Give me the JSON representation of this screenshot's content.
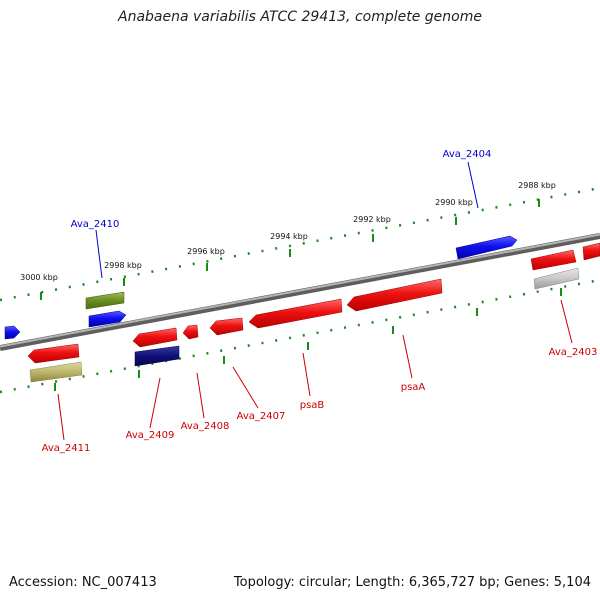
{
  "title": "Anabaena variabilis ATCC 29413, complete genome",
  "footer": {
    "accession": "Accession: NC_007413",
    "summary": "Topology: circular; Length: 6,365,727 bp; Genes: 5,104"
  },
  "colors": {
    "backbone": "#8a8a8a",
    "tick": "#1a8a1a",
    "gene_red": "#ee1111",
    "label_red": "#cc0000",
    "label_blue": "#0000cc"
  },
  "ticks_outer": [
    {
      "label": "3000 kbp"
    },
    {
      "label": "2998 kbp"
    },
    {
      "label": "2996 kbp"
    },
    {
      "label": "2994 kbp"
    },
    {
      "label": "2992 kbp"
    },
    {
      "label": "2990 kbp"
    },
    {
      "label": "2988 kbp"
    }
  ],
  "labels": [
    {
      "text": "Ava_2404",
      "color": "blue"
    },
    {
      "text": "Ava_2410",
      "color": "blue"
    },
    {
      "text": "Ava_2403",
      "color": "red"
    },
    {
      "text": "psaA",
      "color": "red"
    },
    {
      "text": "psaB",
      "color": "red"
    },
    {
      "text": "Ava_2407",
      "color": "red"
    },
    {
      "text": "Ava_2408",
      "color": "red"
    },
    {
      "text": "Ava_2409",
      "color": "red"
    },
    {
      "text": "Ava_2411",
      "color": "red"
    }
  ]
}
